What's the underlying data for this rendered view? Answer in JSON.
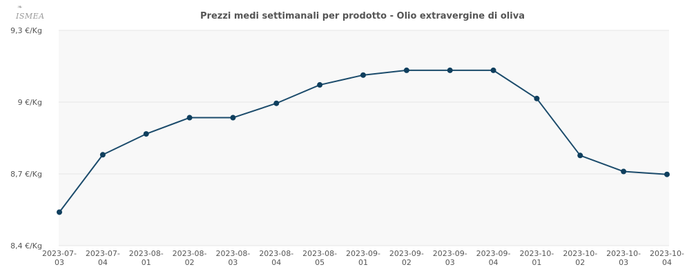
{
  "logo": {
    "text": "ISMEA",
    "mark": "❧"
  },
  "chart_data": {
    "type": "line",
    "title": "Prezzi medi settimanali per prodotto - Olio extravergine di oliva",
    "xlabel": "",
    "ylabel": "",
    "categories": [
      "2023-07-03",
      "2023-07-04",
      "2023-08-01",
      "2023-08-02",
      "2023-08-03",
      "2023-08-04",
      "2023-08-05",
      "2023-09-01",
      "2023-09-02",
      "2023-09-03",
      "2023-09-04",
      "2023-10-01",
      "2023-10-02",
      "2023-10-03",
      "2023-10-04"
    ],
    "series": [
      {
        "values": [
          8.54,
          8.78,
          8.867,
          8.935,
          8.935,
          8.995,
          9.072,
          9.113,
          9.133,
          9.133,
          9.133,
          9.015,
          8.777,
          8.71,
          8.698
        ]
      }
    ],
    "ylim": [
      8.4,
      9.3
    ],
    "yticks": [
      {
        "value": 9.3,
        "label": "9,3 €/Kg"
      },
      {
        "value": 9.0,
        "label": "9 €/Kg"
      },
      {
        "value": 8.7,
        "label": "8,7 €/Kg"
      },
      {
        "value": 8.4,
        "label": "8,4 €/Kg"
      }
    ],
    "grid": true,
    "legend": "none",
    "colors": {
      "line": "#1b4b6b",
      "marker": "#0f3f5e",
      "plot_bg": "#f8f8f8",
      "grid": "#e6e6e6",
      "text": "#555555",
      "title": "#555555"
    }
  }
}
